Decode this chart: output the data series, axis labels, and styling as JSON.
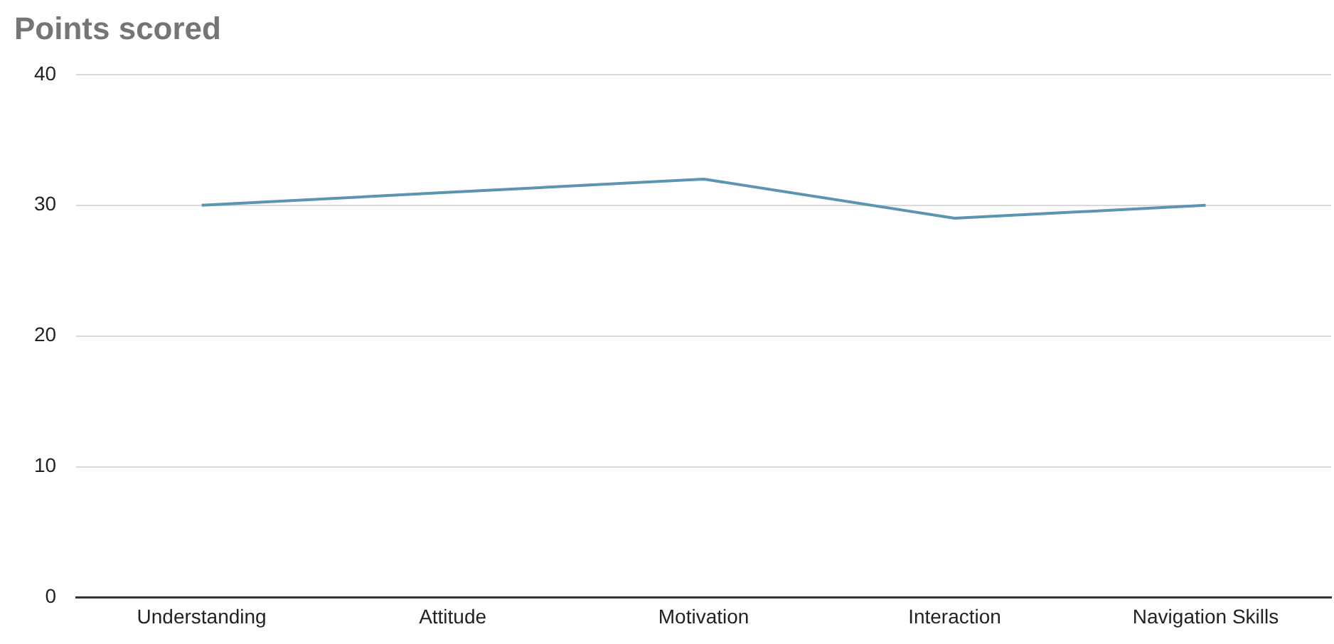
{
  "chart_data": {
    "type": "line",
    "title": "Points scored",
    "categories": [
      "Understanding",
      "Attitude",
      "Motivation",
      "Interaction",
      "Navigation Skills"
    ],
    "series": [
      {
        "color": "#5b95b2",
        "values": [
          30,
          31,
          32,
          29,
          30
        ]
      }
    ],
    "ylim": [
      0,
      40
    ],
    "yticks": [
      0,
      10,
      20,
      30,
      40
    ],
    "grid": "y",
    "legend": false,
    "marker": "none",
    "line_style": "solid"
  }
}
